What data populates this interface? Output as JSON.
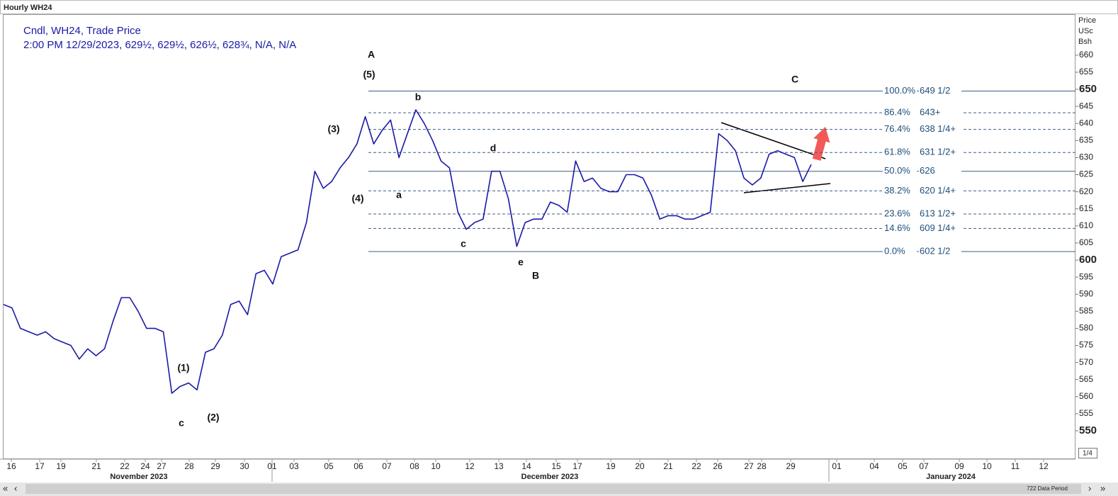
{
  "chart_data": {
    "type": "line",
    "title": "Hourly WH24",
    "legend_line1": "Cndl, WH24, Trade Price",
    "legend_line2": "2:00 PM 12/29/2023, 629½, 629½, 626½, 628¾, N/A, N/A",
    "y_axis_label": [
      "Price",
      "USc",
      "Bsh"
    ],
    "ylim": [
      541.7,
      672
    ],
    "yticks": [
      550,
      555,
      560,
      565,
      570,
      575,
      580,
      585,
      590,
      595,
      600,
      605,
      610,
      615,
      620,
      625,
      630,
      635,
      640,
      645,
      650,
      655,
      660
    ],
    "xtick_labels": [
      "16",
      "17",
      "19",
      "21",
      "22",
      "24",
      "27",
      "28",
      "29",
      "30",
      "01",
      "03",
      "05",
      "06",
      "07",
      "08",
      "10",
      "12",
      "13",
      "14",
      "15",
      "17",
      "19",
      "20",
      "21",
      "22",
      "26",
      "27",
      "28",
      "29",
      "01",
      "04",
      "05",
      "07",
      "09",
      "10",
      "11",
      "12"
    ],
    "months": [
      "November 2023",
      "December 2023",
      "January 2024"
    ],
    "series": [
      {
        "name": "WH24",
        "color": "#1a1aa8",
        "values": [
          587,
          586,
          580,
          579,
          578,
          579,
          577,
          576,
          575,
          571,
          574,
          572,
          574,
          582,
          589,
          589,
          585,
          580,
          580,
          579,
          561,
          563,
          564,
          562,
          573,
          574,
          578,
          587,
          588,
          584,
          596,
          597,
          593,
          601,
          602,
          603,
          611,
          626,
          621,
          623,
          627,
          630,
          634,
          642,
          634,
          638,
          641,
          630,
          637,
          644,
          640,
          635,
          629,
          627,
          614,
          609,
          611,
          612,
          626,
          626,
          618,
          604,
          611,
          612,
          612,
          617,
          616,
          614,
          629,
          623,
          624,
          621,
          620,
          620,
          625,
          625,
          624,
          619,
          612,
          613,
          613,
          612,
          612,
          613,
          614,
          637,
          635,
          632,
          624,
          622,
          624,
          631,
          632,
          631,
          630,
          623,
          628
        ]
      }
    ],
    "fib_levels": [
      {
        "pct": "100.0%",
        "value": 649.5,
        "label": "649 1/2"
      },
      {
        "pct": "86.4%",
        "value": 643.125,
        "label": "643+"
      },
      {
        "pct": "76.4%",
        "value": 638.25,
        "label": "638 1/4+"
      },
      {
        "pct": "61.8%",
        "value": 631.5,
        "label": "631 1/2+"
      },
      {
        "pct": "50.0%",
        "value": 626,
        "label": "626"
      },
      {
        "pct": "38.2%",
        "value": 620.25,
        "label": "620 1/4+"
      },
      {
        "pct": "23.6%",
        "value": 613.5,
        "label": "613 1/2+"
      },
      {
        "pct": "14.6%",
        "value": 609.25,
        "label": "609 1/4+"
      },
      {
        "pct": "0.0%",
        "value": 602.5,
        "label": "602 1/2"
      }
    ],
    "annotations": [
      "A",
      "(5)",
      "b",
      "(3)",
      "d",
      "a",
      "(4)",
      "c",
      "e",
      "B",
      "C",
      "(1)",
      "(2)",
      "c"
    ],
    "data_period": "722 Data Period",
    "page_indicator": "1/4"
  }
}
